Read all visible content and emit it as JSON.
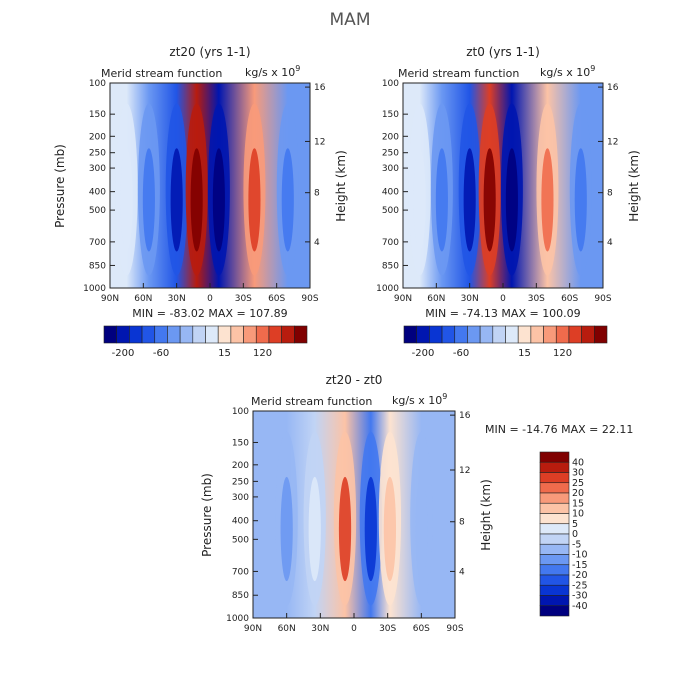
{
  "page": {
    "title": "MAM"
  },
  "chart_data": [
    {
      "type": "heatmap",
      "title": "zt20 (yrs 1-1)",
      "subtitle": "Merid stream function",
      "units_text": "kg/s x 10",
      "units_exp": "9",
      "ylabel": "Pressure (mb)",
      "ylabel_right": "Height (km)",
      "x_ticks": [
        "90N",
        "60N",
        "30N",
        "0",
        "30S",
        "60S",
        "90S"
      ],
      "y_ticks": [
        "100",
        "150",
        "200",
        "250",
        "300",
        "400",
        "500",
        "700",
        "850",
        "1000"
      ],
      "height_ticks": [
        "16",
        "12",
        "8",
        "4"
      ],
      "stats": "MIN = -83.02   MAX = 107.89",
      "colorbar_labels": [
        "-200",
        "-60",
        "15",
        "120"
      ],
      "cells": [
        {
          "lat": 75,
          "value": 8
        },
        {
          "lat": 55,
          "value": -8
        },
        {
          "lat": 30,
          "value": -40
        },
        {
          "lat": 12,
          "value": 100
        },
        {
          "lat": -8,
          "value": -80
        },
        {
          "lat": -40,
          "value": 45
        },
        {
          "lat": -70,
          "value": -8
        }
      ]
    },
    {
      "type": "heatmap",
      "title": "zt0 (yrs 1-1)",
      "subtitle": "Merid stream function",
      "units_text": "kg/s x 10",
      "units_exp": "9",
      "ylabel": "",
      "ylabel_right": "Height (km)",
      "x_ticks": [
        "90N",
        "60N",
        "30N",
        "0",
        "30S",
        "60S",
        "90S"
      ],
      "y_ticks": [
        "100",
        "150",
        "200",
        "250",
        "300",
        "400",
        "500",
        "700",
        "850",
        "1000"
      ],
      "height_ticks": [
        "16",
        "12",
        "8",
        "4"
      ],
      "stats": "MIN = -74.13   MAX = 100.09",
      "colorbar_labels": [
        "-200",
        "-60",
        "15",
        "120"
      ],
      "cells": [
        {
          "lat": 75,
          "value": 8
        },
        {
          "lat": 55,
          "value": -8
        },
        {
          "lat": 30,
          "value": -35
        },
        {
          "lat": 12,
          "value": 95
        },
        {
          "lat": -8,
          "value": -70
        },
        {
          "lat": -40,
          "value": 40
        },
        {
          "lat": -70,
          "value": -8
        }
      ]
    },
    {
      "type": "heatmap",
      "title": "zt20 - zt0",
      "subtitle": "Merid stream function",
      "units_text": "kg/s x 10",
      "units_exp": "9",
      "ylabel": "Pressure (mb)",
      "ylabel_right": "Height (km)",
      "x_ticks": [
        "90N",
        "60N",
        "30N",
        "0",
        "30S",
        "60S",
        "90S"
      ],
      "y_ticks": [
        "100",
        "150",
        "200",
        "250",
        "300",
        "400",
        "500",
        "700",
        "850",
        "1000"
      ],
      "height_ticks": [
        "16",
        "12",
        "8",
        "4"
      ],
      "stats": "MIN = -14.76   MAX = 22.11",
      "colorbar_labels": [
        "40",
        "30",
        "25",
        "20",
        "15",
        "10",
        "5",
        "0",
        "-5",
        "-10",
        "-15",
        "-20",
        "-25",
        "-30",
        "-40"
      ],
      "cells": [
        {
          "lat": 60,
          "value": -3
        },
        {
          "lat": 35,
          "value": 3
        },
        {
          "lat": 8,
          "value": 18
        },
        {
          "lat": -15,
          "value": -12
        },
        {
          "lat": -32,
          "value": 10
        },
        {
          "lat": -60,
          "value": -2
        }
      ]
    }
  ],
  "colors": {
    "diverging": [
      "#00007f",
      "#0016b0",
      "#0935d3",
      "#2155e6",
      "#4378ef",
      "#6b98f2",
      "#97b7f4",
      "#c1d4f5",
      "#dde9f9",
      "#fde3d0",
      "#fcc3a6",
      "#f89a7a",
      "#f06b4c",
      "#dd3e25",
      "#b81c0e",
      "#800000"
    ]
  }
}
